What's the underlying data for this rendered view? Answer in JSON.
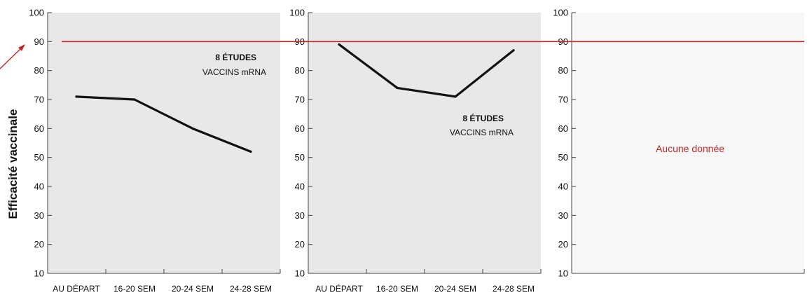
{
  "colors": {
    "panel_fill": "#e8e8e8",
    "panel_fill_empty": "#f7f7f7",
    "series": "#111111",
    "reference": "#c0282d",
    "axis": "#444444"
  },
  "chart_data": {
    "type": "line",
    "ylabel": "Efficacité vaccinale",
    "ylim": [
      10,
      100
    ],
    "yticks": [
      10,
      20,
      30,
      40,
      50,
      60,
      70,
      80,
      90,
      100
    ],
    "categories": [
      "AU DÉPART",
      "16-20 SEM",
      "20-24 SEM",
      "24-28 SEM"
    ],
    "reference_line": {
      "y": 90
    },
    "grid": false,
    "panels": [
      {
        "series": [
          {
            "values": [
              71,
              70,
              60,
              52
            ]
          }
        ],
        "annotation_bold": "8 ÉTUDES",
        "annotation": "VACCINS mRNA",
        "no_data_text": ""
      },
      {
        "series": [
          {
            "values": [
              89,
              74,
              71,
              87
            ]
          }
        ],
        "annotation_bold": "8 ÉTUDES",
        "annotation": "VACCINS mRNA",
        "no_data_text": ""
      },
      {
        "series": [],
        "annotation_bold": "",
        "annotation": "",
        "no_data_text": "Aucune donnée"
      }
    ]
  }
}
